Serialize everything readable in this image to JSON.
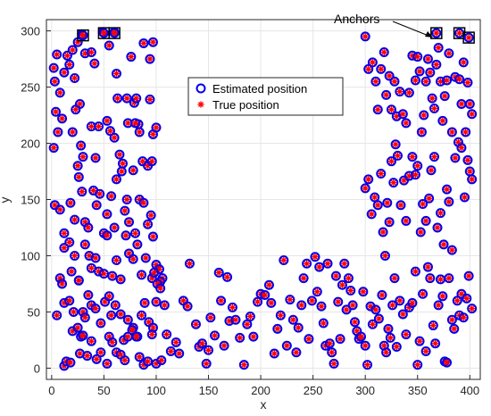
{
  "chart_data": {
    "type": "scatter",
    "xlabel": "x",
    "ylabel": "y",
    "xlim": [
      -5,
      410
    ],
    "ylim": [
      -10,
      310
    ],
    "xticks": [
      0,
      50,
      100,
      150,
      200,
      250,
      300,
      350,
      400
    ],
    "yticks": [
      0,
      50,
      100,
      150,
      200,
      250,
      300
    ],
    "grid": true,
    "legend_position": "upper-center",
    "annotation": "Anchors",
    "colors": {
      "estimated": "#0000ee",
      "true": "#ff0000",
      "anchor_box": "#000000"
    },
    "series": [
      {
        "name": "Estimated position",
        "marker": "circle"
      },
      {
        "name": "True position",
        "marker": "asterisk"
      }
    ],
    "anchors": [
      {
        "x": 30,
        "y": 296
      },
      {
        "x": 50,
        "y": 298
      },
      {
        "x": 60,
        "y": 298
      },
      {
        "x": 368,
        "y": 298
      },
      {
        "x": 390,
        "y": 298
      },
      {
        "x": 399,
        "y": 294
      }
    ],
    "points": [
      [
        2,
        267
      ],
      [
        5,
        279
      ],
      [
        3,
        255
      ],
      [
        8,
        245
      ],
      [
        4,
        228
      ],
      [
        12,
        263
      ],
      [
        15,
        278
      ],
      [
        20,
        283
      ],
      [
        25,
        290
      ],
      [
        29,
        297
      ],
      [
        17,
        270
      ],
      [
        22,
        258
      ],
      [
        27,
        235
      ],
      [
        32,
        280
      ],
      [
        38,
        281
      ],
      [
        41,
        271
      ],
      [
        49,
        299
      ],
      [
        55,
        287
      ],
      [
        60,
        299
      ],
      [
        62,
        262
      ],
      [
        63,
        240
      ],
      [
        72,
        240
      ],
      [
        76,
        277
      ],
      [
        79,
        236
      ],
      [
        81,
        240
      ],
      [
        83,
        217
      ],
      [
        88,
        289
      ],
      [
        94,
        275
      ],
      [
        94,
        239
      ],
      [
        97,
        290
      ],
      [
        2,
        196
      ],
      [
        6,
        210
      ],
      [
        10,
        222
      ],
      [
        20,
        210
      ],
      [
        23,
        230
      ],
      [
        25,
        180
      ],
      [
        28,
        198
      ],
      [
        30,
        188
      ],
      [
        38,
        215
      ],
      [
        42,
        187
      ],
      [
        45,
        215
      ],
      [
        53,
        220
      ],
      [
        56,
        211
      ],
      [
        60,
        205
      ],
      [
        65,
        190
      ],
      [
        68,
        182
      ],
      [
        73,
        218
      ],
      [
        78,
        176
      ],
      [
        80,
        218
      ],
      [
        84,
        210
      ],
      [
        87,
        184
      ],
      [
        92,
        180
      ],
      [
        96,
        184
      ],
      [
        97,
        208
      ],
      [
        100,
        214
      ],
      [
        3,
        145
      ],
      [
        8,
        141
      ],
      [
        12,
        120
      ],
      [
        18,
        147
      ],
      [
        22,
        132
      ],
      [
        26,
        170
      ],
      [
        29,
        157
      ],
      [
        32,
        130
      ],
      [
        35,
        125
      ],
      [
        40,
        158
      ],
      [
        43,
        145
      ],
      [
        46,
        155
      ],
      [
        50,
        120
      ],
      [
        53,
        137
      ],
      [
        57,
        153
      ],
      [
        60,
        125
      ],
      [
        62,
        168
      ],
      [
        67,
        175
      ],
      [
        70,
        140
      ],
      [
        72,
        150
      ],
      [
        74,
        130
      ],
      [
        80,
        120
      ],
      [
        84,
        150
      ],
      [
        88,
        147
      ],
      [
        92,
        128
      ],
      [
        95,
        136
      ],
      [
        97,
        117
      ],
      [
        12,
        107
      ],
      [
        17,
        112
      ],
      [
        19,
        86
      ],
      [
        22,
        100
      ],
      [
        26,
        78
      ],
      [
        32,
        110
      ],
      [
        36,
        100
      ],
      [
        38,
        89
      ],
      [
        42,
        98
      ],
      [
        45,
        86
      ],
      [
        50,
        84
      ],
      [
        53,
        118
      ],
      [
        58,
        82
      ],
      [
        62,
        96
      ],
      [
        66,
        79
      ],
      [
        71,
        118
      ],
      [
        74,
        102
      ],
      [
        78,
        97
      ],
      [
        82,
        110
      ],
      [
        86,
        83
      ],
      [
        90,
        98
      ],
      [
        96,
        80
      ],
      [
        100,
        92
      ],
      [
        103,
        88
      ],
      [
        106,
        80
      ],
      [
        104,
        77
      ],
      [
        101,
        75
      ],
      [
        98,
        85
      ],
      [
        8,
        80
      ],
      [
        10,
        75
      ],
      [
        5,
        47
      ],
      [
        12,
        58
      ],
      [
        17,
        60
      ],
      [
        21,
        50
      ],
      [
        26,
        78
      ],
      [
        28,
        28
      ],
      [
        30,
        50
      ],
      [
        32,
        45
      ],
      [
        35,
        65
      ],
      [
        38,
        56
      ],
      [
        42,
        53
      ],
      [
        47,
        40
      ],
      [
        51,
        59
      ],
      [
        55,
        64
      ],
      [
        57,
        47
      ],
      [
        61,
        56
      ],
      [
        66,
        48
      ],
      [
        69,
        25
      ],
      [
        73,
        43
      ],
      [
        78,
        36
      ],
      [
        82,
        28
      ],
      [
        86,
        47
      ],
      [
        89,
        58
      ],
      [
        93,
        41
      ],
      [
        97,
        36
      ],
      [
        100,
        59
      ],
      [
        104,
        71
      ],
      [
        108,
        56
      ],
      [
        12,
        2
      ],
      [
        14,
        6
      ],
      [
        18,
        5
      ],
      [
        20,
        33
      ],
      [
        25,
        36
      ],
      [
        27,
        13
      ],
      [
        30,
        29
      ],
      [
        34,
        11
      ],
      [
        38,
        24
      ],
      [
        43,
        8
      ],
      [
        47,
        14
      ],
      [
        53,
        4
      ],
      [
        55,
        28
      ],
      [
        58,
        23
      ],
      [
        62,
        14
      ],
      [
        66,
        12
      ],
      [
        70,
        7
      ],
      [
        73,
        28
      ],
      [
        77,
        34
      ],
      [
        81,
        28
      ],
      [
        84,
        10
      ],
      [
        88,
        3
      ],
      [
        92,
        6
      ],
      [
        96,
        30
      ],
      [
        100,
        4
      ],
      [
        105,
        7
      ],
      [
        110,
        30
      ],
      [
        114,
        15
      ],
      [
        119,
        23
      ],
      [
        122,
        13
      ],
      [
        126,
        60
      ],
      [
        130,
        55
      ],
      [
        132,
        93
      ],
      [
        138,
        39
      ],
      [
        141,
        19
      ],
      [
        144,
        22
      ],
      [
        148,
        4
      ],
      [
        150,
        16
      ],
      [
        152,
        45
      ],
      [
        156,
        29
      ],
      [
        160,
        85
      ],
      [
        162,
        60
      ],
      [
        165,
        20
      ],
      [
        168,
        81
      ],
      [
        170,
        42
      ],
      [
        173,
        54
      ],
      [
        176,
        43
      ],
      [
        180,
        27
      ],
      [
        184,
        3
      ],
      [
        187,
        39
      ],
      [
        190,
        46
      ],
      [
        193,
        28
      ],
      [
        197,
        59
      ],
      [
        200,
        66
      ],
      [
        204,
        65
      ],
      [
        208,
        74
      ],
      [
        210,
        58
      ],
      [
        213,
        13
      ],
      [
        216,
        35
      ],
      [
        219,
        47
      ],
      [
        222,
        96
      ],
      [
        225,
        20
      ],
      [
        228,
        61
      ],
      [
        231,
        43
      ],
      [
        234,
        14
      ],
      [
        236,
        36
      ],
      [
        239,
        56
      ],
      [
        241,
        80
      ],
      [
        244,
        93
      ],
      [
        246,
        26
      ],
      [
        249,
        60
      ],
      [
        252,
        99
      ],
      [
        254,
        68
      ],
      [
        256,
        90
      ],
      [
        258,
        55
      ],
      [
        260,
        40
      ],
      [
        262,
        20
      ],
      [
        264,
        93
      ],
      [
        266,
        22
      ],
      [
        268,
        14
      ],
      [
        270,
        4
      ],
      [
        272,
        82
      ],
      [
        274,
        59
      ],
      [
        276,
        26
      ],
      [
        278,
        74
      ],
      [
        280,
        93
      ],
      [
        282,
        52
      ],
      [
        284,
        80
      ],
      [
        286,
        69
      ],
      [
        288,
        56
      ],
      [
        290,
        41
      ],
      [
        292,
        33
      ],
      [
        294,
        26
      ],
      [
        296,
        28
      ],
      [
        298,
        68
      ],
      [
        300,
        20
      ],
      [
        302,
        3
      ],
      [
        305,
        55
      ],
      [
        307,
        39
      ],
      [
        310,
        52
      ],
      [
        313,
        44
      ],
      [
        316,
        65
      ],
      [
        318,
        20
      ],
      [
        320,
        14
      ],
      [
        322,
        35
      ],
      [
        324,
        27
      ],
      [
        326,
        56
      ],
      [
        328,
        80
      ],
      [
        330,
        19
      ],
      [
        333,
        60
      ],
      [
        336,
        48
      ],
      [
        339,
        30
      ],
      [
        342,
        54
      ],
      [
        345,
        58
      ],
      [
        348,
        86
      ],
      [
        350,
        3
      ],
      [
        352,
        24
      ],
      [
        355,
        66
      ],
      [
        358,
        15
      ],
      [
        360,
        90
      ],
      [
        362,
        80
      ],
      [
        365,
        38
      ],
      [
        367,
        22
      ],
      [
        370,
        56
      ],
      [
        372,
        79
      ],
      [
        374,
        64
      ],
      [
        376,
        6
      ],
      [
        378,
        5
      ],
      [
        380,
        80
      ],
      [
        383,
        43
      ],
      [
        385,
        35
      ],
      [
        388,
        60
      ],
      [
        390,
        47
      ],
      [
        392,
        66
      ],
      [
        394,
        45
      ],
      [
        397,
        62
      ],
      [
        399,
        82
      ],
      [
        402,
        53
      ],
      [
        300,
        295
      ],
      [
        303,
        266
      ],
      [
        307,
        272
      ],
      [
        310,
        255
      ],
      [
        312,
        230
      ],
      [
        315,
        266
      ],
      [
        318,
        281
      ],
      [
        320,
        243
      ],
      [
        323,
        260
      ],
      [
        325,
        230
      ],
      [
        328,
        255
      ],
      [
        330,
        224
      ],
      [
        333,
        246
      ],
      [
        336,
        226
      ],
      [
        339,
        218
      ],
      [
        342,
        245
      ],
      [
        345,
        278
      ],
      [
        348,
        256
      ],
      [
        350,
        277
      ],
      [
        352,
        264
      ],
      [
        354,
        210
      ],
      [
        356,
        225
      ],
      [
        358,
        255
      ],
      [
        360,
        275
      ],
      [
        362,
        263
      ],
      [
        364,
        240
      ],
      [
        366,
        231
      ],
      [
        368,
        270
      ],
      [
        370,
        285
      ],
      [
        372,
        255
      ],
      [
        374,
        220
      ],
      [
        376,
        242
      ],
      [
        378,
        256
      ],
      [
        380,
        280
      ],
      [
        383,
        210
      ],
      [
        386,
        259
      ],
      [
        390,
        257
      ],
      [
        392,
        235
      ],
      [
        394,
        272
      ],
      [
        396,
        210
      ],
      [
        398,
        254
      ],
      [
        400,
        235
      ],
      [
        402,
        226
      ],
      [
        300,
        160
      ],
      [
        303,
        168
      ],
      [
        306,
        137
      ],
      [
        309,
        152
      ],
      [
        312,
        145
      ],
      [
        315,
        173
      ],
      [
        317,
        121
      ],
      [
        319,
        100
      ],
      [
        321,
        147
      ],
      [
        323,
        130
      ],
      [
        325,
        184
      ],
      [
        327,
        165
      ],
      [
        329,
        199
      ],
      [
        331,
        189
      ],
      [
        334,
        145
      ],
      [
        337,
        167
      ],
      [
        339,
        131
      ],
      [
        342,
        171
      ],
      [
        345,
        188
      ],
      [
        348,
        172
      ],
      [
        350,
        180
      ],
      [
        353,
        121
      ],
      [
        355,
        146
      ],
      [
        358,
        131
      ],
      [
        361,
        151
      ],
      [
        363,
        176
      ],
      [
        366,
        188
      ],
      [
        369,
        125
      ],
      [
        372,
        138
      ],
      [
        375,
        110
      ],
      [
        378,
        159
      ],
      [
        380,
        148
      ],
      [
        383,
        105
      ],
      [
        386,
        187
      ],
      [
        389,
        201
      ],
      [
        392,
        196
      ],
      [
        395,
        152
      ],
      [
        398,
        185
      ],
      [
        400,
        175
      ],
      [
        402,
        168
      ]
    ]
  }
}
